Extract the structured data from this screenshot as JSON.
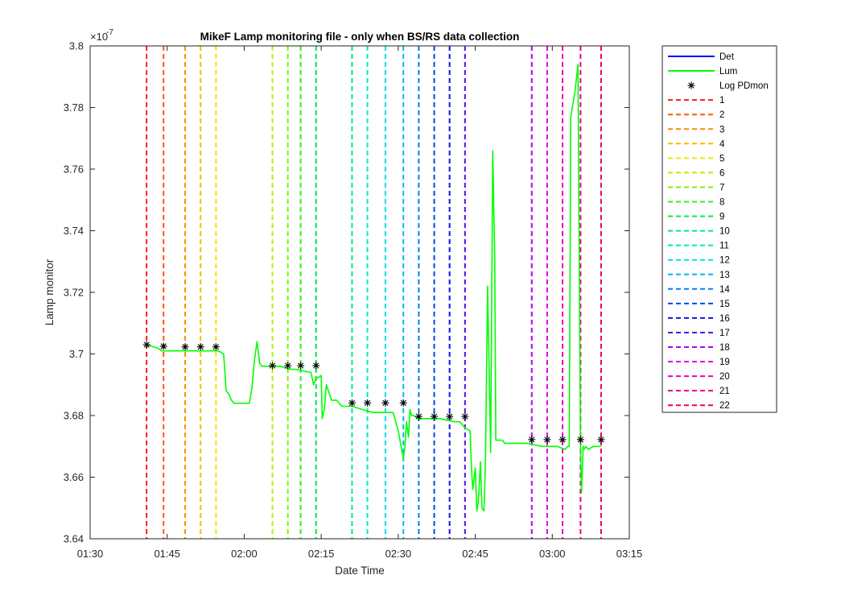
{
  "chart_data": {
    "type": "line",
    "title": "MikeF Lamp monitoring file - only when BS/RS data collection",
    "xlabel": "Date Time",
    "ylabel": "Lamp monitor",
    "y_exponent_label": "×10",
    "y_exponent_value": "-7",
    "xlim": [
      "01:30",
      "03:15"
    ],
    "ylim": [
      3.64,
      3.8
    ],
    "x_ticks": [
      "01:30",
      "01:45",
      "02:00",
      "02:15",
      "02:30",
      "02:45",
      "03:00",
      "03:15"
    ],
    "y_ticks": [
      "3.64",
      "3.66",
      "3.68",
      "3.7",
      "3.72",
      "3.74",
      "3.76",
      "3.78",
      "3.8"
    ],
    "grid": false,
    "legend_position": "outside-right",
    "series": [
      {
        "name": "Det",
        "color": "#0000ff",
        "x": [],
        "y": []
      },
      {
        "name": "Lum",
        "color": "#00ff00",
        "x": [
          "01:41",
          "01:43",
          "01:44",
          "01:48",
          "01:50",
          "01:53",
          "01:55",
          "01:56",
          "01:56.5",
          "01:57",
          "01:57.5",
          "01:58",
          "02:01",
          "02:01.5",
          "02:02",
          "02:02.5",
          "02:03",
          "02:03.5",
          "02:05",
          "02:07",
          "02:09",
          "02:10",
          "02:13",
          "02:13.5",
          "02:14",
          "02:15",
          "02:15.2",
          "02:15.6",
          "02:16",
          "02:17",
          "02:18",
          "02:19",
          "02:21",
          "02:23",
          "02:25",
          "02:26",
          "02:27",
          "02:28",
          "02:29",
          "02:30",
          "02:31",
          "02:31.3",
          "02:31.6",
          "02:32",
          "02:32.3",
          "02:32.6",
          "02:33",
          "02:34",
          "02:38",
          "02:41",
          "02:42",
          "02:43",
          "02:44",
          "02:44.2",
          "02:44.5",
          "02:45",
          "02:45.3",
          "02:45.6",
          "02:46",
          "02:46.3",
          "02:46.7",
          "02:47",
          "02:47.4",
          "02:48",
          "02:48.4",
          "02:48.8",
          "02:49",
          "02:49.3",
          "02:49.7",
          "02:50",
          "02:50.3",
          "02:50.7",
          "02:51",
          "02:51.3",
          "02:51.6",
          "02:55",
          "02:58",
          "03:00",
          "03:01",
          "03:02.5",
          "03:03",
          "03:03.3",
          "03:03.6",
          "03:04",
          "03:04.4",
          "03:05",
          "03:05.5",
          "03:05.7",
          "03:06",
          "03:06.2",
          "03:06.5",
          "03:07",
          "03:08",
          "03:09",
          "03:09.5"
        ],
        "y": [
          3.703,
          3.702,
          3.701,
          3.701,
          3.701,
          3.701,
          3.701,
          3.7,
          3.688,
          3.687,
          3.685,
          3.684,
          3.684,
          3.689,
          3.698,
          3.704,
          3.697,
          3.696,
          3.696,
          3.696,
          3.695,
          3.695,
          3.694,
          3.69,
          3.692,
          3.693,
          3.679,
          3.682,
          3.69,
          3.685,
          3.685,
          3.683,
          3.683,
          3.682,
          3.681,
          3.681,
          3.681,
          3.681,
          3.681,
          3.675,
          3.666,
          3.67,
          3.678,
          3.673,
          3.682,
          3.68,
          3.68,
          3.679,
          3.679,
          3.678,
          3.678,
          3.676,
          3.675,
          3.665,
          3.656,
          3.663,
          3.649,
          3.652,
          3.665,
          3.65,
          3.649,
          3.666,
          3.722,
          3.668,
          3.766,
          3.73,
          3.672,
          3.672,
          3.672,
          3.672,
          3.672,
          3.671,
          3.671,
          3.671,
          3.671,
          3.671,
          3.67,
          3.67,
          3.67,
          3.669,
          3.67,
          3.67,
          3.777,
          3.781,
          3.785,
          3.794,
          3.668,
          3.655,
          3.67,
          3.669,
          3.67,
          3.669,
          3.67,
          3.67,
          3.67
        ]
      }
    ],
    "log_pdmon": {
      "name": "Log PDmon",
      "x": [
        "01:41",
        "01:44.3",
        "01:48.5",
        "01:51.5",
        "01:54.5",
        "02:05.5",
        "02:08.5",
        "02:11",
        "02:14",
        "02:21",
        "02:24",
        "02:27.5",
        "02:31",
        "02:34",
        "02:37",
        "02:40",
        "02:43",
        "02:56",
        "02:59",
        "03:02",
        "03:05.5",
        "03:09.5"
      ],
      "y": [
        3.703,
        3.7025,
        3.7023,
        3.7023,
        3.7023,
        3.6962,
        3.6962,
        3.6962,
        3.6962,
        3.6841,
        3.6841,
        3.6841,
        3.6841,
        3.6797,
        3.6797,
        3.6797,
        3.6797,
        3.6722,
        3.6722,
        3.6722,
        3.6722,
        3.6722
      ]
    },
    "vlines": [
      {
        "name": "1",
        "x": "01:41",
        "color": "#ff1a1a"
      },
      {
        "name": "2",
        "x": "01:44.3",
        "color": "#ff5a00"
      },
      {
        "name": "3",
        "x": "01:48.5",
        "color": "#ff8c00"
      },
      {
        "name": "4",
        "x": "01:51.5",
        "color": "#f0c000"
      },
      {
        "name": "5",
        "x": "01:54.5",
        "color": "#e8e800"
      },
      {
        "name": "6",
        "x": "02:05.5",
        "color": "#b4f000"
      },
      {
        "name": "7",
        "x": "02:08.5",
        "color": "#80f000"
      },
      {
        "name": "8",
        "x": "02:11",
        "color": "#30f020"
      },
      {
        "name": "9",
        "x": "02:14",
        "color": "#00e840"
      },
      {
        "name": "10",
        "x": "02:21",
        "color": "#00e890"
      },
      {
        "name": "11",
        "x": "02:24",
        "color": "#00e8c8"
      },
      {
        "name": "12",
        "x": "02:27.5",
        "color": "#00e0f0"
      },
      {
        "name": "13",
        "x": "02:31",
        "color": "#00b8f0"
      },
      {
        "name": "14",
        "x": "02:34",
        "color": "#0080f0"
      },
      {
        "name": "15",
        "x": "02:37",
        "color": "#0048e8"
      },
      {
        "name": "16",
        "x": "02:40",
        "color": "#1010e0"
      },
      {
        "name": "17",
        "x": "02:43",
        "color": "#5010e8"
      },
      {
        "name": "18",
        "x": "02:56",
        "color": "#b000e8"
      },
      {
        "name": "19",
        "x": "02:59",
        "color": "#e000e0"
      },
      {
        "name": "20",
        "x": "03:02",
        "color": "#f000b0"
      },
      {
        "name": "21",
        "x": "03:05.5",
        "color": "#f00080"
      },
      {
        "name": "22",
        "x": "03:09.5",
        "color": "#f00050"
      }
    ]
  }
}
